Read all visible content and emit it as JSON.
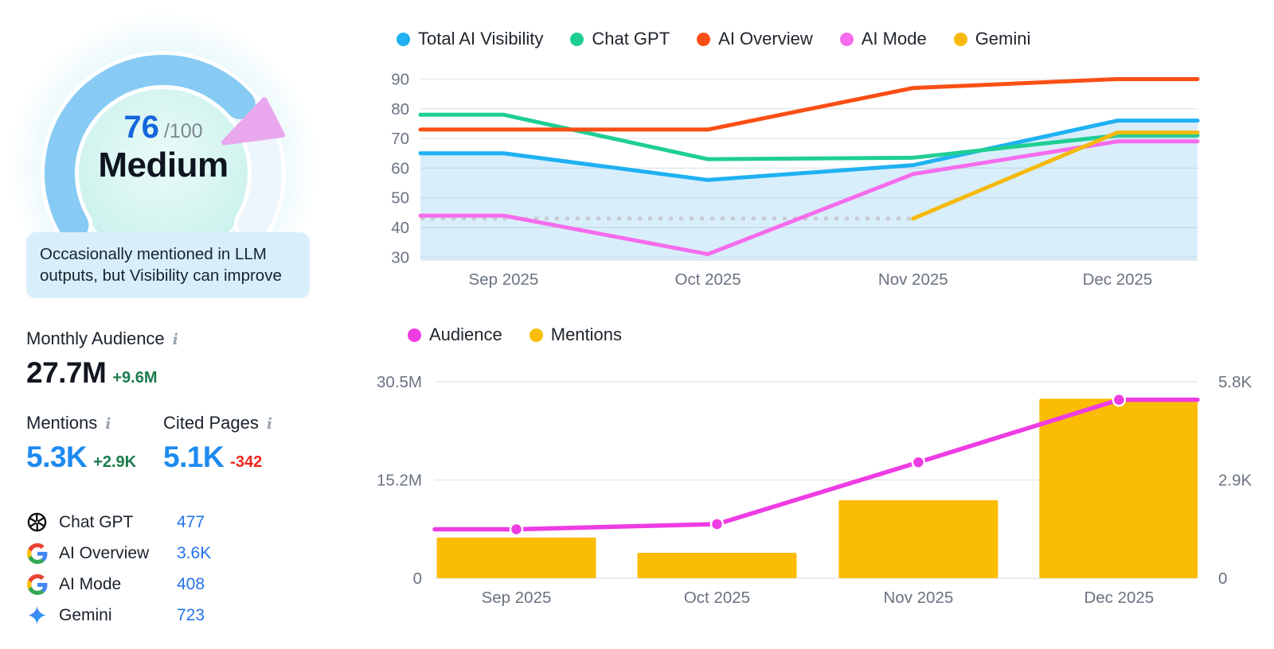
{
  "score_panel": {
    "score": "76",
    "score_max": "/100",
    "rating": "Medium",
    "description": "Occasionally mentioned in LLM outputs, but Visibility can improve",
    "arc_color": "#87CBF4",
    "marker_color": "#E9A8EE"
  },
  "kpis": {
    "monthly_audience": {
      "label": "Monthly Audience",
      "value": "27.7M",
      "delta": "+9.6M"
    },
    "mentions": {
      "label": "Mentions",
      "value": "5.3K",
      "delta": "+2.9K"
    },
    "cited_pages": {
      "label": "Cited Pages",
      "value": "5.1K",
      "delta": "-342"
    }
  },
  "sources": [
    {
      "icon": "openai-icon",
      "label": "Chat GPT",
      "value": "477"
    },
    {
      "icon": "google-icon",
      "label": "AI Overview",
      "value": "3.6K"
    },
    {
      "icon": "google-icon",
      "label": "AI Mode",
      "value": "408"
    },
    {
      "icon": "gemini-icon",
      "label": "Gemini",
      "value": "723"
    }
  ],
  "chart_data": [
    {
      "type": "line",
      "legend_position": "top",
      "x_points": [
        "period-start",
        "Sep 2025",
        "Oct 2025",
        "Nov 2025",
        "Dec 2025",
        "period-end"
      ],
      "x_tick_labels": [
        "Sep 2025",
        "Oct 2025",
        "Nov 2025",
        "Dec 2025"
      ],
      "y_ticks": [
        30,
        40,
        50,
        60,
        70,
        80,
        90
      ],
      "ylim": [
        29,
        92
      ],
      "grid": "horizontal",
      "series": [
        {
          "name": "Total AI Visibility",
          "color": "#1FB1F2",
          "area_fill": true,
          "area_color": "#D9EEFB",
          "values": [
            65,
            65,
            56,
            61,
            76,
            76
          ]
        },
        {
          "name": "Chat GPT",
          "color": "#1FCE93",
          "values": [
            78,
            78,
            63,
            63.5,
            71,
            71
          ]
        },
        {
          "name": "AI Overview",
          "color": "#FA4F14",
          "values": [
            73,
            73,
            73,
            87,
            90,
            90
          ]
        },
        {
          "name": "AI Mode",
          "color": "#F56CEC",
          "values": [
            44,
            44,
            31,
            58,
            69,
            69
          ]
        },
        {
          "name": "Gemini",
          "color": "#F5B90C",
          "values": [
            null,
            null,
            null,
            43,
            72,
            72
          ]
        }
      ],
      "reference_line": {
        "value": 43,
        "style": "dotted",
        "color": "#C7CBD1",
        "from": "period-start",
        "to": "Nov 2025"
      }
    },
    {
      "type": "bar+line",
      "legend_position": "top",
      "x_tick_labels": [
        "Sep 2025",
        "Oct 2025",
        "Nov 2025",
        "Dec 2025"
      ],
      "left_axis": {
        "ticks": [
          "0",
          "15.2M",
          "30.5M"
        ],
        "max_m": 30.5
      },
      "right_axis": {
        "ticks": [
          "0",
          "2.9K",
          "5.8K"
        ],
        "max_k": 5.8
      },
      "series": [
        {
          "name": "Audience",
          "type": "line",
          "unit": "M",
          "color": "#EE3CE3",
          "x_points": [
            "period-start",
            "Sep 2025",
            "Oct 2025",
            "Nov 2025",
            "Dec 2025",
            "period-end"
          ],
          "values": [
            7.6,
            7.6,
            8.4,
            18,
            27.7,
            27.7
          ]
        },
        {
          "name": "Mentions",
          "type": "bar",
          "unit": "K",
          "color": "#FBBC05",
          "values": [
            1.2,
            0.75,
            2.3,
            5.3
          ]
        }
      ]
    }
  ]
}
